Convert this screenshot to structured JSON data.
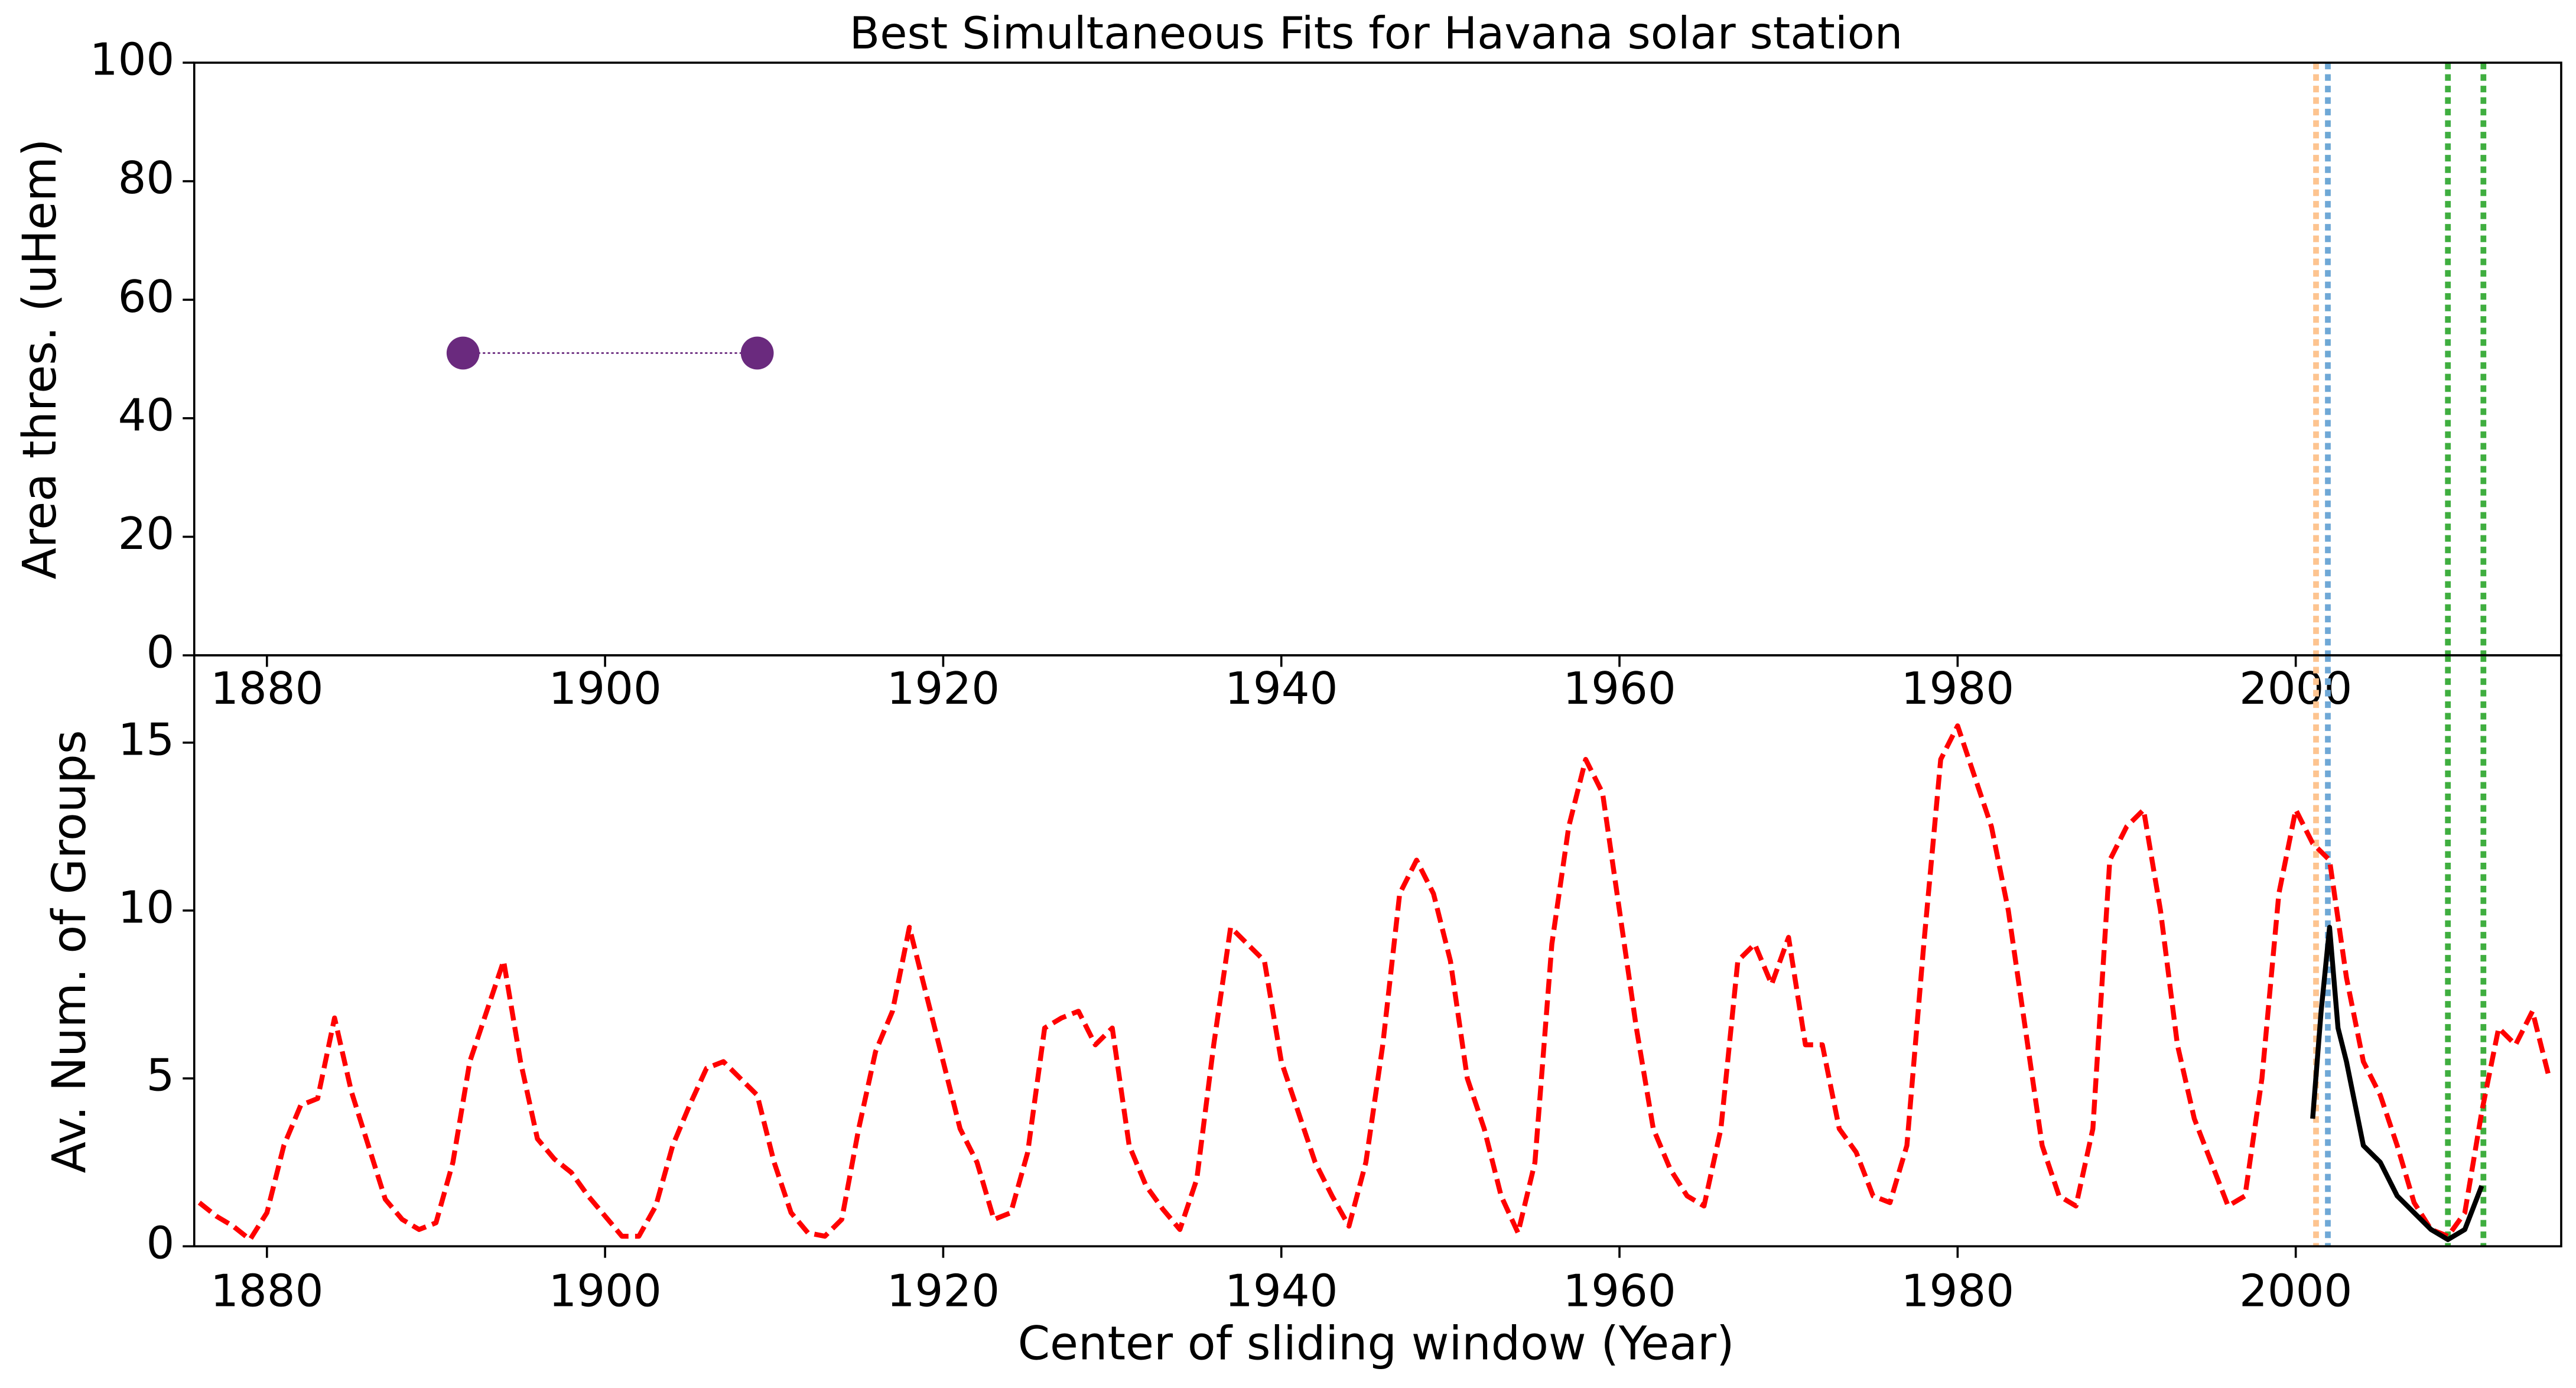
{
  "chart_data": [
    {
      "type": "scatter",
      "title": "Best Simultaneous Fits for Havana solar station",
      "y_label": "Area thres. (uHem)",
      "xlim": [
        1875.7,
        2015.7
      ],
      "xticks": [
        1880,
        1900,
        1920,
        1940,
        1960,
        1980,
        2000
      ],
      "ylim": [
        0,
        100
      ],
      "yticks": [
        0,
        20,
        40,
        60,
        80,
        100
      ],
      "series": [
        {
          "color": "#6a2a7e",
          "x": [
            1891.6,
            1909.0
          ],
          "values": [
            51,
            51
          ]
        }
      ],
      "vlines": [
        {
          "x": 2001.2,
          "color": "#fdc490"
        },
        {
          "x": 2001.9,
          "color": "#6fa8d6"
        },
        {
          "x": 2009.0,
          "color": "#3fae3f"
        },
        {
          "x": 2011.1,
          "color": "#3fae3f"
        }
      ]
    },
    {
      "type": "line",
      "x_label": "Center of sliding window (Year)",
      "y_label": "Av. Num. of Groups",
      "xlim": [
        1875.7,
        2015.7
      ],
      "xticks": [
        1880,
        1900,
        1920,
        1940,
        1960,
        1980,
        2000
      ],
      "ylim": [
        0,
        17.6
      ],
      "yticks": [
        0,
        5,
        10,
        15
      ],
      "series": [
        {
          "color": "#ff0000",
          "dash": "dashed",
          "x": [
            1876,
            1877,
            1878,
            1879,
            1880,
            1881,
            1882,
            1883,
            1884,
            1885,
            1886,
            1887,
            1888,
            1889,
            1890,
            1891,
            1892,
            1893,
            1894,
            1895,
            1896,
            1897,
            1898,
            1899,
            1900,
            1901,
            1902,
            1903,
            1904,
            1905,
            1906,
            1907,
            1908,
            1909,
            1910,
            1911,
            1912,
            1913,
            1914,
            1915,
            1916,
            1917,
            1918,
            1919,
            1920,
            1921,
            1922,
            1923,
            1924,
            1925,
            1926,
            1927,
            1928,
            1929,
            1930,
            1931,
            1932,
            1933,
            1934,
            1935,
            1936,
            1937,
            1938,
            1939,
            1940,
            1941,
            1942,
            1943,
            1944,
            1945,
            1946,
            1947,
            1948,
            1949,
            1950,
            1951,
            1952,
            1953,
            1954,
            1955,
            1956,
            1957,
            1958,
            1959,
            1960,
            1961,
            1962,
            1963,
            1964,
            1965,
            1966,
            1967,
            1968,
            1969,
            1970,
            1971,
            1972,
            1973,
            1974,
            1975,
            1976,
            1977,
            1978,
            1979,
            1980,
            1981,
            1982,
            1983,
            1984,
            1985,
            1986,
            1987,
            1988,
            1989,
            1990,
            1991,
            1992,
            1993,
            1994,
            1995,
            1996,
            1997,
            1998,
            1999,
            2000,
            2001,
            2002,
            2003,
            2004,
            2005,
            2006,
            2007,
            2008,
            2009,
            2010,
            2011,
            2012,
            2013,
            2014,
            2015
          ],
          "values": [
            1.3,
            0.9,
            0.6,
            0.2,
            1.0,
            3.0,
            4.2,
            4.4,
            6.8,
            4.6,
            3.0,
            1.4,
            0.8,
            0.5,
            0.7,
            2.5,
            5.5,
            7.0,
            8.5,
            5.5,
            3.2,
            2.6,
            2.2,
            1.5,
            0.9,
            0.3,
            0.3,
            1.2,
            3.0,
            4.2,
            5.3,
            5.5,
            5.0,
            4.5,
            2.5,
            1.0,
            0.4,
            0.3,
            0.8,
            3.5,
            5.8,
            7.0,
            9.5,
            7.5,
            5.5,
            3.5,
            2.5,
            0.8,
            1.0,
            2.8,
            6.5,
            6.8,
            7.0,
            6.0,
            6.5,
            3.0,
            1.8,
            1.1,
            0.5,
            2.0,
            6.0,
            9.5,
            9.0,
            8.5,
            5.5,
            4.0,
            2.5,
            1.5,
            0.6,
            2.5,
            6.0,
            10.5,
            11.5,
            10.5,
            8.5,
            5.0,
            3.5,
            1.5,
            0.4,
            2.5,
            9.0,
            12.5,
            14.5,
            13.5,
            10.0,
            6.5,
            3.5,
            2.3,
            1.5,
            1.2,
            3.5,
            8.5,
            9.0,
            7.8,
            9.2,
            6.0,
            6.0,
            3.5,
            2.8,
            1.5,
            1.3,
            3.0,
            9.0,
            14.5,
            15.5,
            14.0,
            12.5,
            10.0,
            6.5,
            3.0,
            1.5,
            1.2,
            3.5,
            11.5,
            12.5,
            13.0,
            10.0,
            6.0,
            3.8,
            2.5,
            1.2,
            1.5,
            5.0,
            10.5,
            13.0,
            12.0,
            11.5,
            8.0,
            5.5,
            4.5,
            3.0,
            1.3,
            0.5,
            0.3,
            1.0,
            4.0,
            6.5,
            6.0,
            7.0,
            5.0
          ]
        },
        {
          "color": "#000000",
          "dash": "solid",
          "x": [
            2001.0,
            2001.5,
            2002.0,
            2002.5,
            2003.0,
            2004.0,
            2005.0,
            2006.0,
            2007.0,
            2008.0,
            2009.0,
            2010.0,
            2011.0
          ],
          "values": [
            3.8,
            7.0,
            9.5,
            6.5,
            5.5,
            3.0,
            2.5,
            1.5,
            1.0,
            0.5,
            0.2,
            0.5,
            1.8
          ]
        }
      ],
      "vlines": [
        {
          "x": 2001.2,
          "color": "#fdc490"
        },
        {
          "x": 2001.9,
          "color": "#6fa8d6"
        },
        {
          "x": 2009.0,
          "color": "#3fae3f"
        },
        {
          "x": 2011.1,
          "color": "#3fae3f"
        }
      ]
    }
  ]
}
